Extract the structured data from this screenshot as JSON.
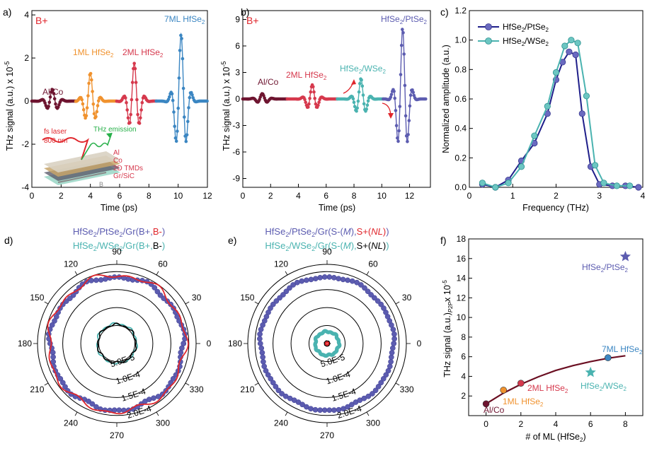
{
  "colors": {
    "alco": "#6e1530",
    "ml1": "#f0922e",
    "ml2": "#d6394d",
    "ml7": "#3b86c2",
    "pt": "#5c5cb0",
    "w": "#4ab3b0",
    "red": "#e0262c",
    "black": "#000000",
    "fit": "#6b0f22"
  },
  "icon": "THz emission schematic with fs laser beam and Al/Co/2D TMDs/Gr/SiC layer stack",
  "chart_data": [
    {
      "panel": "a)",
      "type": "line",
      "xlabel": "Time (ps)",
      "ylabel": "THz signal (a.u.) x 10",
      "ylabel_exp": "-5",
      "xlim": [
        0,
        12
      ],
      "ylim": [
        -4,
        4.2
      ],
      "xticks": [
        "0",
        "2",
        "4",
        "6",
        "8",
        "10",
        "12"
      ],
      "yticks": [
        "-4",
        "-2",
        "0",
        "2",
        "4"
      ],
      "label_corner": "B+",
      "series": [
        {
          "name": "Al/Co",
          "center": 1.4,
          "amplitude": 0.55
        },
        {
          "name": "1ML HfSe2",
          "center": 4.0,
          "amplitude": 1.3
        },
        {
          "name": "2ML HfSe2",
          "center": 7.0,
          "amplitude": 1.75
        },
        {
          "name": "7ML HfSe2",
          "center": 10.2,
          "amplitude": 3.1
        }
      ],
      "annotations": {
        "alco": "Al/Co",
        "ml1": "1ML HfSe",
        "ml2": "2ML HfSe",
        "ml7": "7ML HfSe",
        "sub2": "2",
        "laser": "fs laser",
        "nm": "800 nm",
        "emission": "THz emission",
        "layers": [
          "Al",
          "Co",
          "2D TMDs",
          "Gr/SiC"
        ],
        "field": "B"
      }
    },
    {
      "panel": "b)",
      "type": "line",
      "xlabel": "Time (ps)",
      "ylabel": "THz signal (a.u.) x 10",
      "ylabel_exp": "-5",
      "xlim": [
        0,
        13.5
      ],
      "ylim": [
        -10,
        10
      ],
      "xticks": [
        "0",
        "2",
        "4",
        "6",
        "8",
        "10",
        "12"
      ],
      "yticks": [
        "-9",
        "-6",
        "-3",
        "0",
        "3",
        "6",
        "9"
      ],
      "label_corner": "B+",
      "series": [
        {
          "name": "Al/Co",
          "center": 1.4,
          "amplitude": 0.6
        },
        {
          "name": "2ML HfSe2",
          "center": 5.0,
          "amplitude": 1.6
        },
        {
          "name": "HfSe2/WSe2",
          "center": 8.5,
          "amplitude": 2.3
        },
        {
          "name": "HfSe2/PtSe2",
          "center": 11.5,
          "amplitude": 8.0
        }
      ],
      "annotations": {
        "alco": "Al/Co",
        "ml2": "2ML HfSe",
        "wse": "HfSe",
        "wse_b": "/WSe",
        "pt": "HfSe",
        "pt_b": "/PtSe",
        "sub2": "2"
      }
    },
    {
      "panel": "c)",
      "type": "line",
      "xlabel": "Frequency (THz)",
      "ylabel": "Normalized amplitude (a.u.)",
      "xlim": [
        0,
        4
      ],
      "ylim": [
        0,
        1.2
      ],
      "xticks": [
        "0",
        "1",
        "2",
        "3",
        "4"
      ],
      "yticks": [
        "0.0",
        "0.2",
        "0.4",
        "0.6",
        "0.8",
        "1.0",
        "1.2"
      ],
      "series": [
        {
          "name": "HfSe2/PtSe2",
          "x": [
            0.3,
            0.6,
            0.9,
            1.2,
            1.5,
            1.8,
            2.0,
            2.15,
            2.3,
            2.45,
            2.6,
            2.8,
            3.0,
            3.3,
            3.6,
            3.9
          ],
          "y": [
            0.02,
            0.0,
            0.05,
            0.18,
            0.3,
            0.5,
            0.73,
            0.85,
            0.92,
            0.9,
            0.5,
            0.14,
            0.02,
            0.01,
            0.01,
            0.0
          ]
        },
        {
          "name": "HfSe2/WSe2",
          "x": [
            0.3,
            0.6,
            0.9,
            1.2,
            1.5,
            1.8,
            2.0,
            2.2,
            2.35,
            2.5,
            2.7,
            2.9,
            3.1,
            3.4,
            3.7
          ],
          "y": [
            0.03,
            0.0,
            0.03,
            0.14,
            0.35,
            0.55,
            0.78,
            0.96,
            1.0,
            0.98,
            0.62,
            0.15,
            0.03,
            0.01,
            0.01
          ]
        }
      ],
      "legend": {
        "pt": "HfSe",
        "pt_b": "/PtSe",
        "w": "HfSe",
        "w_b": "/WSe",
        "sub2": "2"
      }
    },
    {
      "panel": "d)",
      "type": "polar",
      "title1": {
        "a": "HfSe",
        "b": "/PtSe",
        "c": "/Gr(B+,",
        "d": "B-",
        "e": ")"
      },
      "title2": {
        "a": "HfSe",
        "b": "/WSe",
        "c": "/Gr(B+,",
        "d": "B-",
        "e": ")"
      },
      "angles": [
        "0",
        "30",
        "60",
        "90",
        "120",
        "150",
        "180",
        "210",
        "240",
        "270",
        "300",
        "330"
      ],
      "ring_labels": [
        "5.0E-5",
        "1.0E-4",
        "1.5E-4",
        "2.0E-4"
      ],
      "series": [
        {
          "name": "PtSe2 B+",
          "r": 0.000185
        },
        {
          "name": "PtSe2 B-",
          "r": 0.00019
        },
        {
          "name": "WSe2 B+",
          "r": 5.5e-05
        },
        {
          "name": "WSe2 B-",
          "r": 5.3e-05
        }
      ]
    },
    {
      "panel": "e)",
      "type": "polar",
      "title1": {
        "a": "HfSe",
        "b": "/PtSe",
        "c": "/Gr(S-(",
        "m": "M",
        "c2": "),",
        "d": "S+(",
        "n": "NL",
        "e": ")",
        "f": ")"
      },
      "title2": {
        "a": "HfSe",
        "b": "/WSe",
        "c": "/Gr(S-(",
        "m": "M",
        "c2": "),",
        "d": "S+(",
        "n": "NL",
        "e": ")",
        "f": ")"
      },
      "angles": [
        "0",
        "30",
        "60",
        "90",
        "120",
        "150",
        "180",
        "210",
        "240",
        "270",
        "300",
        "330"
      ],
      "ring_labels": [
        "5.0E-5",
        "1.0E-4",
        "1.5E-4",
        "2.0E-4"
      ],
      "series": [
        {
          "name": "PtSe2 S-",
          "r": 0.000185
        },
        {
          "name": "PtSe2 S+",
          "r": 6e-06
        },
        {
          "name": "WSe2 S-",
          "r": 3.3e-05
        },
        {
          "name": "WSe2 S+",
          "r": 4e-06
        }
      ]
    },
    {
      "panel": "f)",
      "type": "scatter",
      "xlabel": "# of ML (HfSe",
      "xlabel_end": ")",
      "ylabel": "THz signal (a.u.)",
      "ylabel_sub": "P2P",
      "ylabel_exp": "x 10",
      "xlim": [
        -1,
        9
      ],
      "ylim": [
        0,
        18
      ],
      "xticks": [
        "0",
        "2",
        "4",
        "6",
        "8"
      ],
      "yticks": [
        "2",
        "4",
        "6",
        "8",
        "10",
        "12",
        "14",
        "16",
        "18"
      ],
      "points": [
        {
          "name": "Al/Co",
          "x": 0,
          "y": 1.2
        },
        {
          "name": "1ML HfSe2",
          "x": 1,
          "y": 2.6
        },
        {
          "name": "2ML HfSe2",
          "x": 2,
          "y": 3.3
        },
        {
          "name": "7ML HfSe2",
          "x": 7,
          "y": 5.9
        },
        {
          "name": "HfSe2/WSe2",
          "x": 6,
          "y": 4.4
        },
        {
          "name": "HfSe2/PtSe2",
          "x": 8,
          "y": 16.2
        }
      ],
      "fit": {
        "x": [
          0,
          1,
          2,
          3,
          4,
          5,
          6,
          7,
          8
        ],
        "y": [
          1.2,
          2.3,
          3.2,
          3.95,
          4.6,
          5.1,
          5.5,
          5.85,
          6.1
        ]
      },
      "labels": {
        "alco": "Al/Co",
        "ml1": "1ML HfSe",
        "ml2": "2ML HfSe",
        "ml7": "7ML HfSe",
        "w": "HfSe",
        "w_b": "/WSe",
        "pt": "HfSe",
        "pt_b": "/PtSe",
        "sub2": "2"
      }
    }
  ]
}
